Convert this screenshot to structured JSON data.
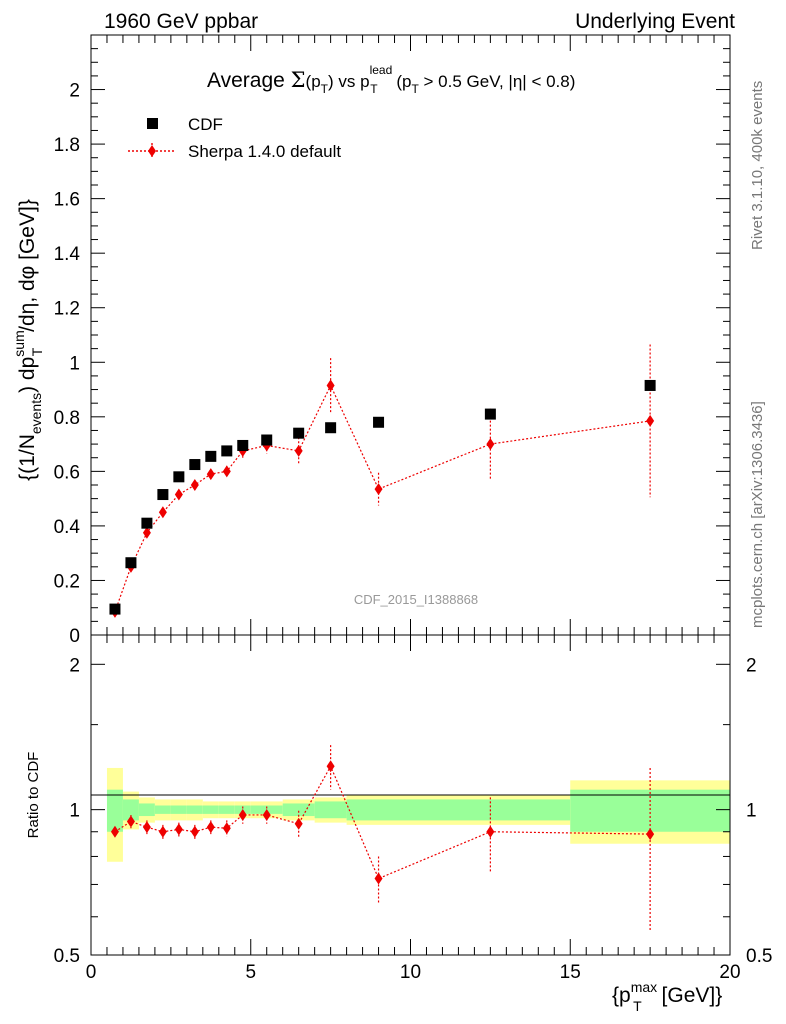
{
  "header": {
    "left": "1960 GeV ppbar",
    "right": "Underlying Event"
  },
  "plot_title": {
    "prefix": "Average ",
    "sigma": "Σ",
    "arg_open": "(p",
    "arg_sub": "T",
    "arg_close": ")",
    "vs": " vs p",
    "lead_sup": "lead",
    "lead_sub": "T",
    "cut_open": " (p",
    "cut_sub": "T",
    "cut_rest": " > 0.5 GeV, |η| < 0.8)"
  },
  "legend": {
    "data_label": "CDF",
    "mc_label": "Sherpa 1.4.0 default"
  },
  "ylabel_main": {
    "p1": "{(1/N",
    "sub1": "events",
    "p2": ") dp",
    "sup2": "sum",
    "sub2": "T",
    "p3": " /dη, dφ [GeV]}"
  },
  "ylabel_ratio": "Ratio to CDF",
  "xlabel": {
    "p1": "{p",
    "sup": "max",
    "sub": "T",
    "p2": " [GeV]}"
  },
  "side_text": {
    "rivet": "Rivet 3.1.10,  400k events",
    "mcplots": "mcplots.cern.ch [arXiv:1306.3436]"
  },
  "watermark": "CDF_2015_I1388868",
  "colors": {
    "mc": "#ee0000",
    "band_inner": "#99ff99",
    "band_outer": "#ffff99",
    "axis": "#000000",
    "side_text": "#777777"
  },
  "chart_data": [
    {
      "type": "scatter",
      "panel": "main",
      "xlim": [
        0,
        20
      ],
      "ylim": [
        0,
        2.2
      ],
      "y_ticks": [
        "0",
        "0.2",
        "0.4",
        "0.6",
        "0.8",
        "1",
        "1.2",
        "1.4",
        "1.6",
        "1.8",
        "2"
      ],
      "x_ticks": [
        "0",
        "5",
        "10",
        "15",
        "20"
      ],
      "series": [
        {
          "name": "CDF",
          "x": [
            0.75,
            1.25,
            1.75,
            2.25,
            2.75,
            3.25,
            3.75,
            4.25,
            4.75,
            5.5,
            6.5,
            7.5,
            9.0,
            12.5,
            17.5
          ],
          "values": [
            0.095,
            0.265,
            0.41,
            0.515,
            0.58,
            0.625,
            0.655,
            0.675,
            0.695,
            0.715,
            0.74,
            0.76,
            0.78,
            0.81,
            0.915
          ],
          "yerr": [
            0.005,
            0.007,
            0.008,
            0.008,
            0.008,
            0.008,
            0.008,
            0.008,
            0.008,
            0.008,
            0.01,
            0.01,
            0.01,
            0.015,
            0.02
          ]
        },
        {
          "name": "Sherpa 1.4.0 default",
          "x": [
            0.75,
            1.25,
            1.75,
            2.25,
            2.75,
            3.25,
            3.75,
            4.25,
            4.75,
            5.5,
            6.5,
            7.5,
            9.0,
            12.5,
            17.5
          ],
          "values": [
            0.085,
            0.25,
            0.375,
            0.45,
            0.515,
            0.55,
            0.59,
            0.6,
            0.675,
            0.695,
            0.675,
            0.915,
            0.535,
            0.7,
            0.785
          ],
          "yerr": [
            0.006,
            0.01,
            0.012,
            0.014,
            0.015,
            0.016,
            0.018,
            0.02,
            0.025,
            0.03,
            0.05,
            0.1,
            0.06,
            0.13,
            0.28
          ]
        }
      ]
    },
    {
      "type": "scatter",
      "panel": "ratio",
      "ylabel": "Ratio to CDF",
      "xlim": [
        0,
        20
      ],
      "ylim": [
        0.5,
        2.3
      ],
      "scale": "log",
      "y_ticks": [
        "0.5",
        "1",
        "2"
      ],
      "bins": [
        [
          0.5,
          1.0
        ],
        [
          1.0,
          1.5
        ],
        [
          1.5,
          2.0
        ],
        [
          2.0,
          2.5
        ],
        [
          2.5,
          3.0
        ],
        [
          3.0,
          3.5
        ],
        [
          3.5,
          4.0
        ],
        [
          4.0,
          4.5
        ],
        [
          4.5,
          5.0
        ],
        [
          5.0,
          6.0
        ],
        [
          6.0,
          7.0
        ],
        [
          7.0,
          8.0
        ],
        [
          8.0,
          10.0
        ],
        [
          10.0,
          15.0
        ],
        [
          15.0,
          20.0
        ]
      ],
      "band_inner": [
        0.1,
        0.05,
        0.03,
        0.02,
        0.02,
        0.02,
        0.02,
        0.02,
        0.02,
        0.02,
        0.03,
        0.04,
        0.05,
        0.05,
        0.1
      ],
      "band_outer": [
        0.22,
        0.09,
        0.06,
        0.05,
        0.05,
        0.05,
        0.04,
        0.04,
        0.04,
        0.04,
        0.05,
        0.06,
        0.07,
        0.07,
        0.15
      ],
      "series": [
        {
          "name": "Sherpa 1.4.0 default",
          "x": [
            0.75,
            1.25,
            1.75,
            2.25,
            2.75,
            3.25,
            3.75,
            4.25,
            4.75,
            5.5,
            6.5,
            7.5,
            9.0,
            12.5,
            17.5
          ],
          "values": [
            0.9,
            0.945,
            0.92,
            0.9,
            0.91,
            0.9,
            0.92,
            0.915,
            0.975,
            0.975,
            0.935,
            1.23,
            0.72,
            0.9,
            0.89
          ],
          "yerr": [
            0.02,
            0.03,
            0.03,
            0.03,
            0.03,
            0.03,
            0.03,
            0.035,
            0.04,
            0.04,
            0.06,
            0.13,
            0.08,
            0.16,
            0.33
          ]
        }
      ]
    }
  ]
}
